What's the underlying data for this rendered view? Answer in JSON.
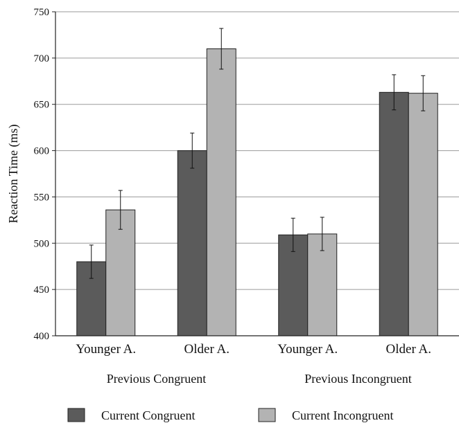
{
  "chart_data": {
    "type": "bar",
    "ylabel": "Reaction Time (ms)",
    "ylim": [
      400,
      750
    ],
    "yticks": [
      400,
      450,
      500,
      550,
      600,
      650,
      700,
      750
    ],
    "grid": true,
    "legend_position": "bottom",
    "categories": [
      "Younger A.",
      "Older A.",
      "Younger A.",
      "Older A."
    ],
    "groups": [
      {
        "label": "Previous Congruent",
        "categories": [
          0,
          1
        ]
      },
      {
        "label": "Previous Incongruent",
        "categories": [
          2,
          3
        ]
      }
    ],
    "series": [
      {
        "name": "Current Congruent",
        "color": "#5b5b5b",
        "values": [
          480,
          600,
          509,
          663
        ],
        "errors": [
          18,
          19,
          18,
          19
        ]
      },
      {
        "name": "Current Incongruent",
        "color": "#b3b3b3",
        "values": [
          536,
          710,
          510,
          662
        ],
        "errors": [
          21,
          22,
          18,
          19
        ]
      }
    ]
  }
}
